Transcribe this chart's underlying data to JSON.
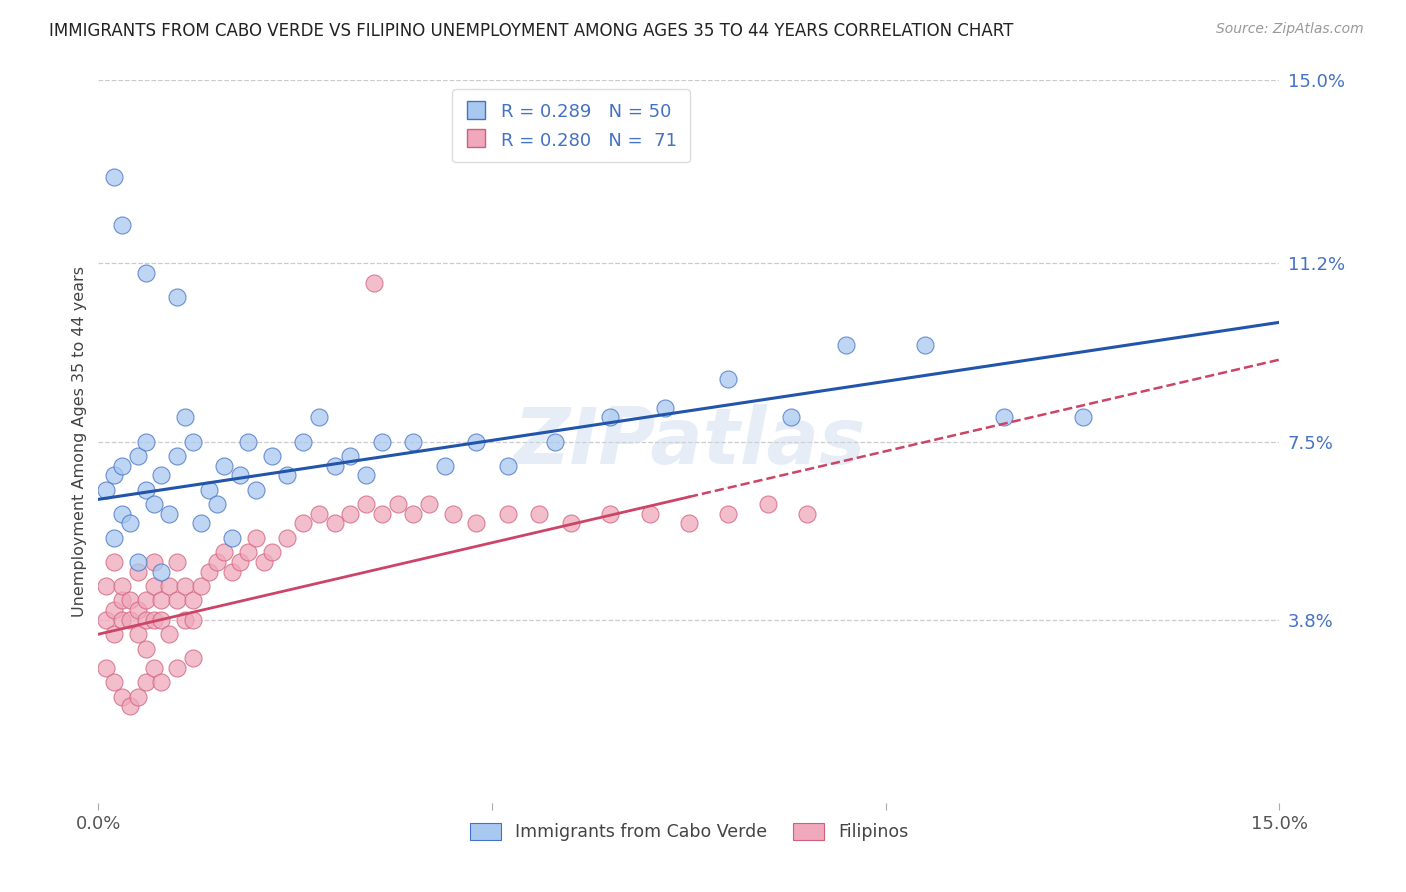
{
  "title": "IMMIGRANTS FROM CABO VERDE VS FILIPINO UNEMPLOYMENT AMONG AGES 35 TO 44 YEARS CORRELATION CHART",
  "source": "Source: ZipAtlas.com",
  "ylabel": "Unemployment Among Ages 35 to 44 years",
  "xmin": 0.0,
  "xmax": 0.15,
  "ymin": 0.0,
  "ymax": 0.15,
  "yticks": [
    0.038,
    0.075,
    0.112,
    0.15
  ],
  "ytick_labels": [
    "3.8%",
    "7.5%",
    "11.2%",
    "15.0%"
  ],
  "xtick_labels": [
    "0.0%",
    "",
    "",
    "15.0%"
  ],
  "watermark": "ZIPatlas",
  "series1_label": "Immigrants from Cabo Verde",
  "series2_label": "Filipinos",
  "series1_color": "#a8c8f0",
  "series2_color": "#f0a8bc",
  "series1_edge": "#4472c4",
  "series2_edge": "#d0607a",
  "trendline1_color": "#2255aa",
  "trendline2_color": "#cc4466",
  "cabo_verde_x": [
    0.001,
    0.002,
    0.002,
    0.003,
    0.003,
    0.004,
    0.005,
    0.005,
    0.006,
    0.006,
    0.007,
    0.008,
    0.008,
    0.009,
    0.01,
    0.011,
    0.012,
    0.013,
    0.014,
    0.015,
    0.016,
    0.017,
    0.018,
    0.019,
    0.02,
    0.022,
    0.024,
    0.026,
    0.028,
    0.03,
    0.032,
    0.034,
    0.036,
    0.04,
    0.044,
    0.048,
    0.052,
    0.058,
    0.065,
    0.072,
    0.08,
    0.088,
    0.095,
    0.105,
    0.115,
    0.125,
    0.002,
    0.003,
    0.006,
    0.01
  ],
  "cabo_verde_y": [
    0.065,
    0.068,
    0.055,
    0.07,
    0.06,
    0.058,
    0.072,
    0.05,
    0.065,
    0.075,
    0.062,
    0.068,
    0.048,
    0.06,
    0.072,
    0.08,
    0.075,
    0.058,
    0.065,
    0.062,
    0.07,
    0.055,
    0.068,
    0.075,
    0.065,
    0.072,
    0.068,
    0.075,
    0.08,
    0.07,
    0.072,
    0.068,
    0.075,
    0.075,
    0.07,
    0.075,
    0.07,
    0.075,
    0.08,
    0.082,
    0.088,
    0.08,
    0.095,
    0.095,
    0.08,
    0.08,
    0.13,
    0.12,
    0.11,
    0.105
  ],
  "filipino_x": [
    0.001,
    0.001,
    0.002,
    0.002,
    0.002,
    0.003,
    0.003,
    0.003,
    0.004,
    0.004,
    0.005,
    0.005,
    0.005,
    0.006,
    0.006,
    0.006,
    0.007,
    0.007,
    0.007,
    0.008,
    0.008,
    0.009,
    0.009,
    0.01,
    0.01,
    0.011,
    0.011,
    0.012,
    0.012,
    0.013,
    0.014,
    0.015,
    0.016,
    0.017,
    0.018,
    0.019,
    0.02,
    0.021,
    0.022,
    0.024,
    0.026,
    0.028,
    0.03,
    0.032,
    0.034,
    0.036,
    0.038,
    0.04,
    0.042,
    0.045,
    0.048,
    0.052,
    0.056,
    0.06,
    0.065,
    0.07,
    0.075,
    0.08,
    0.085,
    0.09,
    0.035,
    0.001,
    0.002,
    0.003,
    0.004,
    0.005,
    0.006,
    0.007,
    0.008,
    0.01,
    0.012
  ],
  "filipino_y": [
    0.038,
    0.045,
    0.04,
    0.035,
    0.05,
    0.042,
    0.038,
    0.045,
    0.038,
    0.042,
    0.04,
    0.035,
    0.048,
    0.038,
    0.042,
    0.032,
    0.045,
    0.038,
    0.05,
    0.042,
    0.038,
    0.045,
    0.035,
    0.042,
    0.05,
    0.038,
    0.045,
    0.042,
    0.038,
    0.045,
    0.048,
    0.05,
    0.052,
    0.048,
    0.05,
    0.052,
    0.055,
    0.05,
    0.052,
    0.055,
    0.058,
    0.06,
    0.058,
    0.06,
    0.062,
    0.06,
    0.062,
    0.06,
    0.062,
    0.06,
    0.058,
    0.06,
    0.06,
    0.058,
    0.06,
    0.06,
    0.058,
    0.06,
    0.062,
    0.06,
    0.108,
    0.028,
    0.025,
    0.022,
    0.02,
    0.022,
    0.025,
    0.028,
    0.025,
    0.028,
    0.03
  ]
}
